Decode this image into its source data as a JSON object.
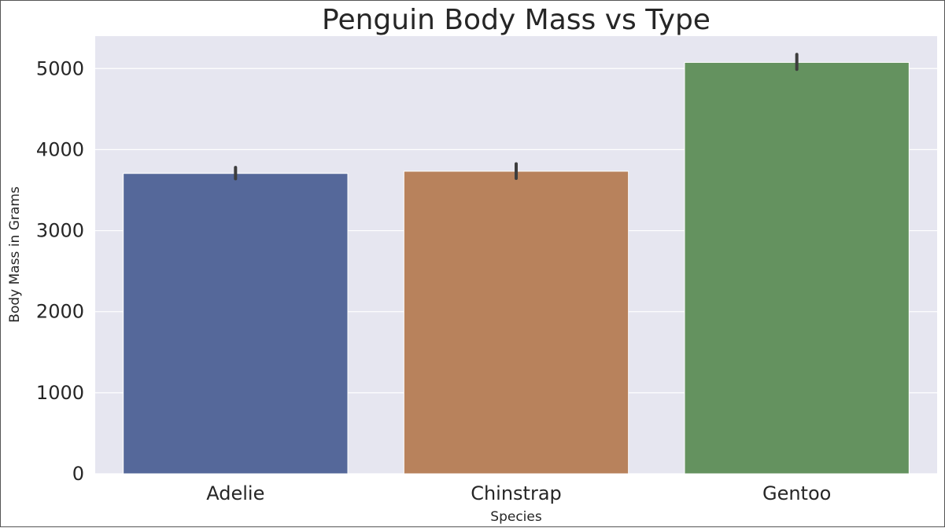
{
  "chart_data": {
    "type": "bar",
    "title": "Penguin Body Mass vs Type",
    "xlabel": "Species",
    "ylabel": "Body Mass in Grams",
    "categories": [
      "Adelie",
      "Chinstrap",
      "Gentoo"
    ],
    "values": [
      3706,
      3733,
      5076
    ],
    "error_bars": [
      [
        3640,
        3780
      ],
      [
        3645,
        3825
      ],
      [
        4990,
        5175
      ]
    ],
    "colors": [
      "#55689a",
      "#b8825c",
      "#64925f"
    ],
    "ylim": [
      0,
      5400
    ],
    "yticks": [
      0,
      1000,
      2000,
      3000,
      4000,
      5000
    ],
    "grid": true,
    "background": "#e6e6f0"
  }
}
